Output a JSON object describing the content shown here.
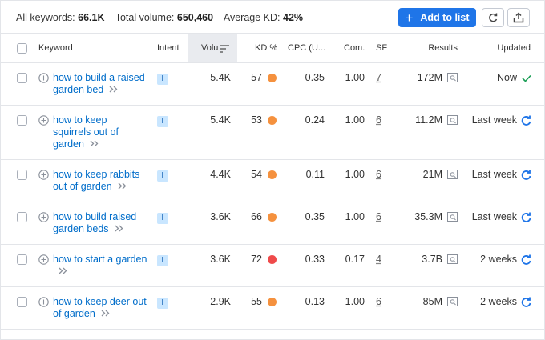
{
  "summary": {
    "keywords_label": "All keywords:",
    "keywords": "66.1K",
    "volume_label": "Total volume:",
    "volume": "650,460",
    "kd_label": "Average KD:",
    "kd": "42%"
  },
  "actions": {
    "add_to_list": "Add to list"
  },
  "table": {
    "headers": [
      "Keyword",
      "Intent",
      "Volu",
      "KD %",
      "CPC (U...",
      "Com.",
      "SF",
      "Results",
      "Updated"
    ],
    "rows": [
      {
        "keyword": "how to build a raised garden bed",
        "intent": "I",
        "volume": "5.4K",
        "kd": "57",
        "kd_color": "#f5913e",
        "cpc": "0.35",
        "com": "1.00",
        "sf": "7",
        "results": "172M",
        "updated": "Now",
        "updated_icon": "check"
      },
      {
        "keyword": "how to keep squirrels out of garden",
        "intent": "I",
        "volume": "5.4K",
        "kd": "53",
        "kd_color": "#f5913e",
        "cpc": "0.24",
        "com": "1.00",
        "sf": "6",
        "results": "11.2M",
        "updated": "Last week",
        "updated_icon": "refresh"
      },
      {
        "keyword": "how to keep rabbits out of garden",
        "intent": "I",
        "volume": "4.4K",
        "kd": "54",
        "kd_color": "#f5913e",
        "cpc": "0.11",
        "com": "1.00",
        "sf": "6",
        "results": "21M",
        "updated": "Last week",
        "updated_icon": "refresh"
      },
      {
        "keyword": "how to build raised garden beds",
        "intent": "I",
        "volume": "3.6K",
        "kd": "66",
        "kd_color": "#f5913e",
        "cpc": "0.35",
        "com": "1.00",
        "sf": "6",
        "results": "35.3M",
        "updated": "Last week",
        "updated_icon": "refresh"
      },
      {
        "keyword": "how to start a garden",
        "intent": "I",
        "volume": "3.6K",
        "kd": "72",
        "kd_color": "#ef4a4a",
        "cpc": "0.33",
        "com": "0.17",
        "sf": "4",
        "results": "3.7B",
        "updated": "2 weeks",
        "updated_icon": "refresh"
      },
      {
        "keyword": "how to keep deer out of garden",
        "intent": "I",
        "volume": "2.9K",
        "kd": "55",
        "kd_color": "#f5913e",
        "cpc": "0.13",
        "com": "1.00",
        "sf": "6",
        "results": "85M",
        "updated": "2 weeks",
        "updated_icon": "refresh"
      }
    ]
  }
}
